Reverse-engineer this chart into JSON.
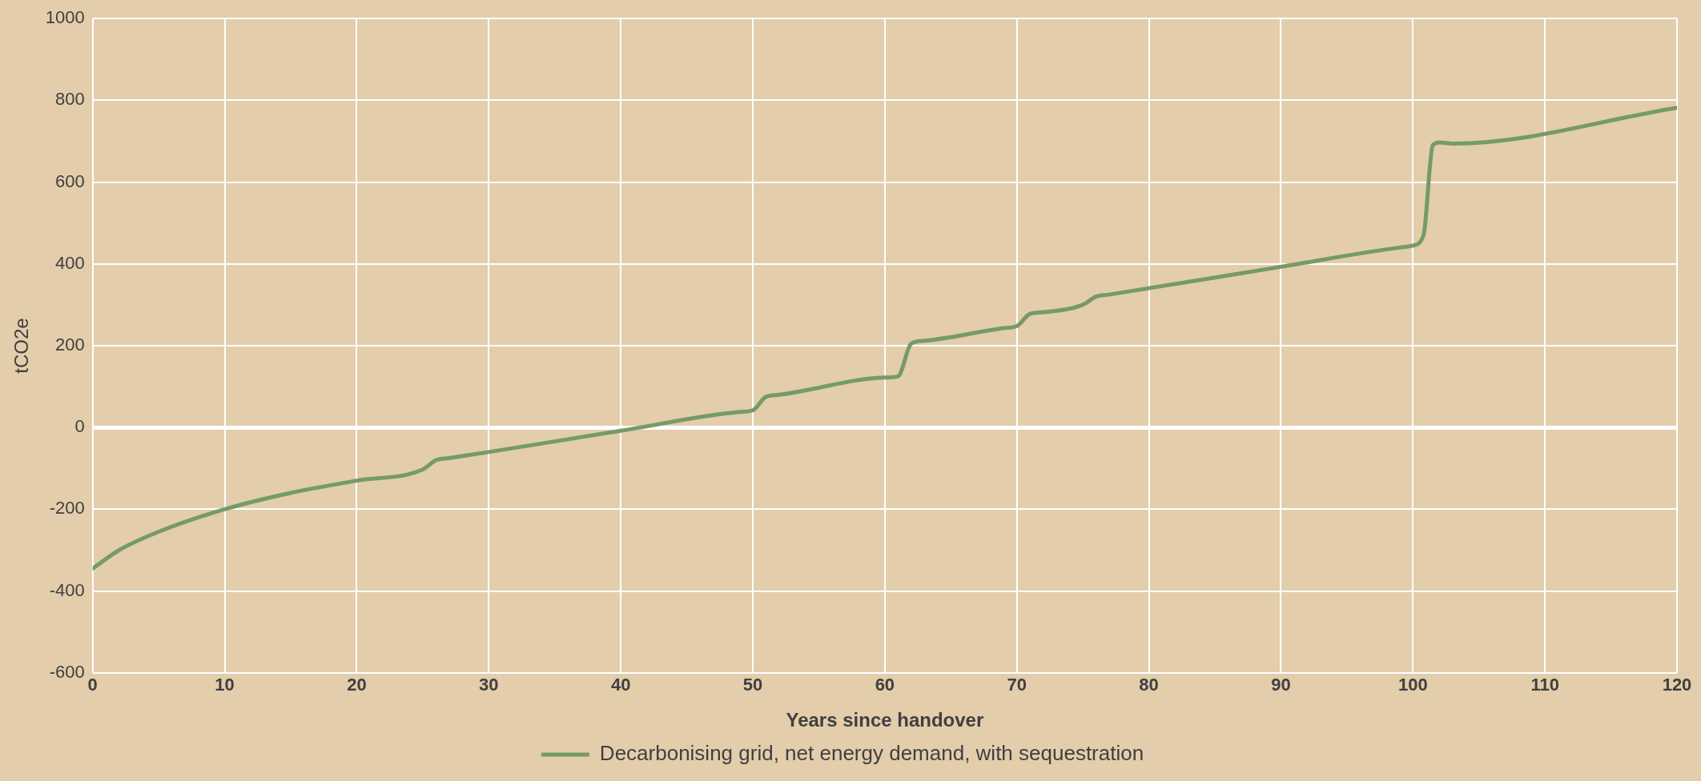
{
  "chart_data": {
    "type": "line",
    "xlabel": "Years since handover",
    "ylabel": "tCO2e",
    "x": [
      0,
      2,
      5,
      10,
      15,
      20,
      25,
      26,
      27,
      30,
      40,
      49,
      50,
      51,
      52,
      60,
      61,
      62,
      63,
      69,
      70,
      71,
      72,
      75,
      76,
      77,
      90,
      99,
      100,
      100.8,
      101.5,
      102,
      103,
      120
    ],
    "series": [
      {
        "name": "Decarbonising grid, net energy demand, with sequestration",
        "color": "#769a6a",
        "values": [
          -345,
          -300,
          -255,
          -200,
          -160,
          -130,
          -103,
          -80,
          -75,
          -60,
          -8,
          38,
          42,
          75,
          80,
          122,
          125,
          205,
          212,
          243,
          248,
          278,
          282,
          300,
          320,
          325,
          393,
          440,
          445,
          470,
          690,
          697,
          694,
          782
        ]
      }
    ],
    "xlim": [
      0,
      120
    ],
    "xticks": [
      0,
      10,
      20,
      30,
      40,
      50,
      60,
      70,
      80,
      90,
      100,
      110,
      120
    ],
    "ylim": [
      -600,
      1000
    ],
    "yticks": [
      -600,
      -400,
      -200,
      0,
      200,
      400,
      600,
      800,
      1000
    ],
    "grid": true,
    "legend": "bottom"
  }
}
